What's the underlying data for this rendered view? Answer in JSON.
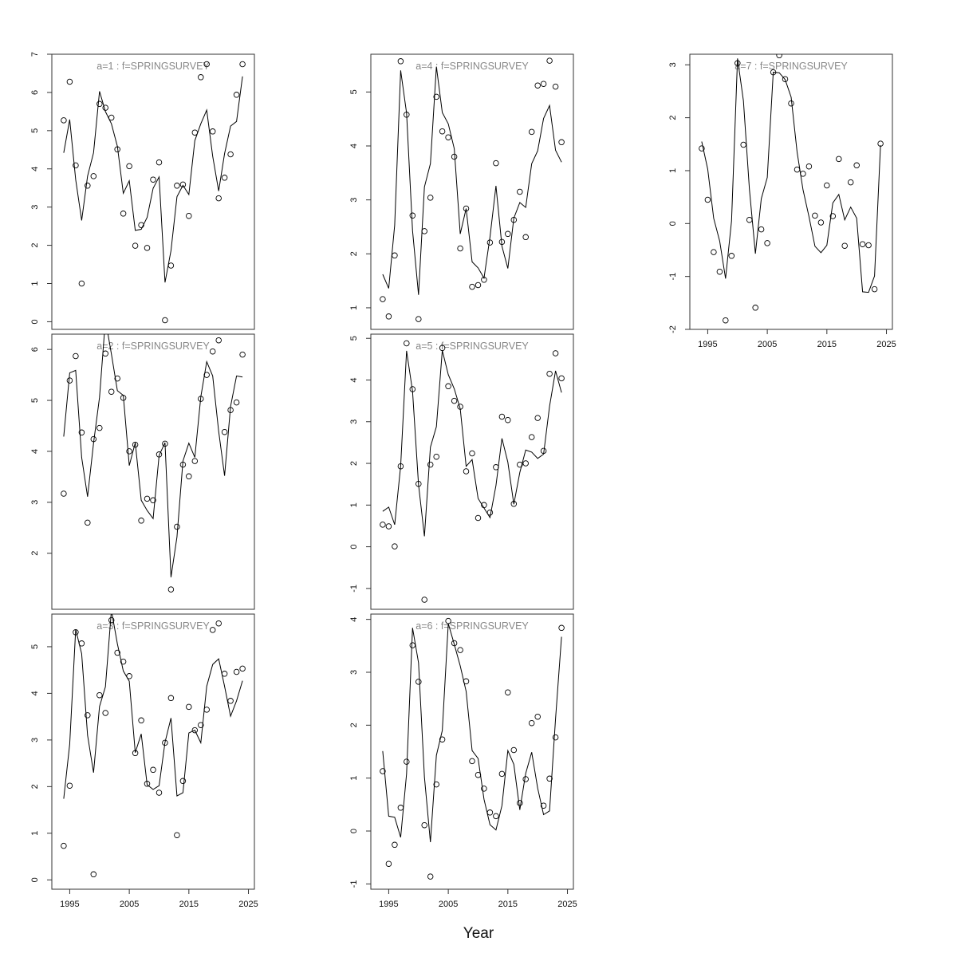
{
  "chart_data": {
    "type": "line",
    "xlabel": "Year",
    "x": [
      1994,
      1995,
      1996,
      1997,
      1998,
      1999,
      2000,
      2001,
      2002,
      2003,
      2004,
      2005,
      2006,
      2007,
      2008,
      2009,
      2010,
      2011,
      2012,
      2013,
      2014,
      2015,
      2016,
      2017,
      2018,
      2019,
      2020,
      2021,
      2022,
      2023,
      2024
    ],
    "xticks": [
      1995,
      2005,
      2015,
      2025
    ],
    "xlim": [
      1992,
      2026
    ],
    "point_symbol": "open-circle",
    "panels": [
      {
        "title": "a=1  :  f=SPRINGSURVEY",
        "ylim": [
          -0.2,
          7.0
        ],
        "yticks": [
          0,
          1,
          2,
          3,
          4,
          5,
          6,
          7
        ],
        "observed": [
          5.27,
          6.28,
          4.09,
          1.0,
          3.56,
          3.81,
          5.7,
          5.6,
          5.34,
          4.51,
          2.83,
          4.07,
          1.99,
          2.53,
          1.93,
          3.72,
          4.17,
          0.04,
          1.47,
          3.56,
          3.59,
          2.77,
          4.95,
          6.4,
          6.74,
          4.98,
          3.23,
          3.77,
          4.38,
          5.94,
          6.74
        ],
        "fitted": [
          4.42,
          5.29,
          3.72,
          2.65,
          3.81,
          4.42,
          6.03,
          5.5,
          5.18,
          4.59,
          3.36,
          3.69,
          2.39,
          2.42,
          2.73,
          3.49,
          3.79,
          1.03,
          1.86,
          3.27,
          3.57,
          3.33,
          4.74,
          5.18,
          5.54,
          4.33,
          3.42,
          4.4,
          5.12,
          5.24,
          6.42
        ]
      },
      {
        "title": "a=2  :  f=SPRINGSURVEY",
        "ylim": [
          0.9,
          6.3
        ],
        "yticks": [
          2,
          3,
          4,
          5,
          6
        ],
        "observed": [
          3.17,
          5.39,
          5.87,
          4.37,
          2.6,
          4.24,
          4.46,
          5.92,
          5.17,
          5.43,
          5.05,
          4.0,
          4.13,
          2.64,
          3.07,
          3.04,
          3.94,
          4.15,
          1.29,
          2.52,
          3.74,
          3.51,
          3.81,
          5.03,
          5.5,
          5.96,
          6.18,
          4.38,
          4.81,
          4.96,
          5.9
        ],
        "fitted": [
          4.29,
          5.54,
          5.59,
          3.88,
          3.11,
          4.16,
          5.06,
          6.59,
          5.91,
          5.19,
          5.1,
          3.72,
          4.17,
          3.04,
          2.84,
          2.68,
          3.92,
          4.17,
          1.53,
          2.32,
          3.81,
          4.16,
          3.88,
          5.07,
          5.76,
          5.48,
          4.39,
          3.52,
          4.88,
          5.48,
          5.46
        ]
      },
      {
        "title": "a=3  :  f=SPRINGSURVEY",
        "ylim": [
          -0.2,
          5.7
        ],
        "yticks": [
          0,
          1,
          2,
          3,
          4,
          5
        ],
        "observed": [
          0.73,
          2.02,
          5.31,
          5.07,
          3.53,
          0.12,
          3.96,
          3.58,
          5.57,
          4.87,
          4.68,
          4.37,
          2.72,
          3.42,
          2.06,
          2.36,
          1.87,
          2.94,
          3.9,
          0.96,
          2.12,
          3.71,
          3.21,
          3.32,
          3.65,
          5.36,
          5.5,
          4.42,
          3.84,
          4.46,
          4.53
        ],
        "fitted": [
          1.74,
          2.91,
          5.37,
          4.85,
          3.1,
          2.3,
          3.72,
          4.14,
          5.78,
          5.06,
          4.48,
          4.26,
          2.73,
          3.13,
          2.04,
          1.94,
          2.02,
          2.95,
          3.47,
          1.8,
          1.87,
          3.15,
          3.21,
          2.94,
          4.15,
          4.62,
          4.74,
          4.15,
          3.51,
          3.84,
          4.27
        ]
      },
      {
        "title": "a=4  :  f=SPRINGSURVEY",
        "ylim": [
          0.6,
          5.7
        ],
        "yticks": [
          1,
          2,
          3,
          4,
          5
        ],
        "observed": [
          1.16,
          0.84,
          1.97,
          5.57,
          4.58,
          2.71,
          0.79,
          2.42,
          3.04,
          4.91,
          4.27,
          4.16,
          3.8,
          2.1,
          2.84,
          1.39,
          1.42,
          1.52,
          2.21,
          3.68,
          2.22,
          2.37,
          2.63,
          3.15,
          2.31,
          4.26,
          5.12,
          5.15,
          5.58,
          5.1,
          4.07
        ],
        "fitted": [
          1.62,
          1.36,
          2.53,
          5.4,
          4.61,
          2.43,
          1.24,
          3.24,
          3.67,
          5.47,
          4.62,
          4.41,
          3.95,
          2.37,
          2.84,
          1.85,
          1.74,
          1.55,
          2.31,
          3.26,
          2.14,
          1.73,
          2.66,
          2.95,
          2.86,
          3.67,
          3.91,
          4.51,
          4.75,
          3.92,
          3.7
        ]
      },
      {
        "title": "a=5  :  f=SPRINGSURVEY",
        "ylim": [
          -1.5,
          5.1
        ],
        "yticks": [
          -1,
          0,
          1,
          2,
          3,
          4,
          5
        ],
        "observed": [
          0.53,
          0.49,
          0.01,
          1.93,
          4.88,
          3.78,
          1.51,
          -1.27,
          1.97,
          2.16,
          4.77,
          3.85,
          3.5,
          3.36,
          1.81,
          2.24,
          0.69,
          1.0,
          0.82,
          1.91,
          3.12,
          3.04,
          1.03,
          1.97,
          2.0,
          2.63,
          3.09,
          2.3,
          4.15,
          4.64,
          4.04
        ],
        "fitted": [
          0.85,
          0.95,
          0.53,
          1.94,
          4.7,
          3.73,
          1.49,
          0.25,
          2.39,
          2.88,
          4.71,
          4.13,
          3.79,
          3.31,
          1.93,
          2.09,
          1.16,
          0.93,
          0.7,
          1.47,
          2.6,
          2.03,
          1.02,
          1.78,
          2.32,
          2.27,
          2.12,
          2.22,
          3.37,
          4.22,
          3.7
        ]
      },
      {
        "title": "a=6  :  f=SPRINGSURVEY",
        "ylim": [
          -1.1,
          4.1
        ],
        "yticks": [
          -1,
          0,
          1,
          2,
          3,
          4
        ],
        "observed": [
          1.13,
          -0.62,
          -0.26,
          0.44,
          1.31,
          3.51,
          2.82,
          0.11,
          -0.86,
          0.88,
          1.73,
          3.97,
          3.55,
          3.42,
          2.83,
          1.32,
          1.06,
          0.8,
          0.35,
          0.28,
          1.08,
          2.62,
          1.53,
          0.53,
          0.98,
          2.04,
          2.16,
          0.48,
          0.99,
          1.77,
          3.84
        ],
        "fitted": [
          1.51,
          0.28,
          0.26,
          -0.12,
          1.08,
          3.84,
          3.18,
          1.02,
          -0.21,
          1.43,
          1.9,
          3.92,
          3.53,
          3.12,
          2.64,
          1.52,
          1.37,
          0.6,
          0.12,
          0.02,
          0.48,
          1.52,
          1.26,
          0.4,
          1.09,
          1.49,
          0.81,
          0.31,
          0.38,
          2.12,
          3.67
        ]
      },
      {
        "title": "a=7  :  f=SPRINGSURVEY",
        "ylim": [
          -2.0,
          3.2
        ],
        "yticks": [
          -2,
          -1,
          0,
          1,
          2,
          3
        ],
        "observed": [
          1.42,
          0.45,
          -0.54,
          -0.91,
          -1.83,
          -0.61,
          3.03,
          1.49,
          0.07,
          -1.59,
          -0.11,
          -0.37,
          2.86,
          3.18,
          2.73,
          2.27,
          1.02,
          0.94,
          1.08,
          0.15,
          0.02,
          0.72,
          0.14,
          1.22,
          -0.42,
          0.78,
          1.1,
          -0.39,
          -0.41,
          -1.24,
          1.51
        ],
        "fitted": [
          1.55,
          1.03,
          0.1,
          -0.33,
          -1.04,
          0.05,
          3.12,
          2.32,
          0.65,
          -0.57,
          0.47,
          0.87,
          2.86,
          2.85,
          2.72,
          2.39,
          1.35,
          0.64,
          0.13,
          -0.43,
          -0.55,
          -0.41,
          0.39,
          0.55,
          0.07,
          0.31,
          0.1,
          -1.29,
          -1.3,
          -0.99,
          1.48
        ]
      }
    ]
  }
}
